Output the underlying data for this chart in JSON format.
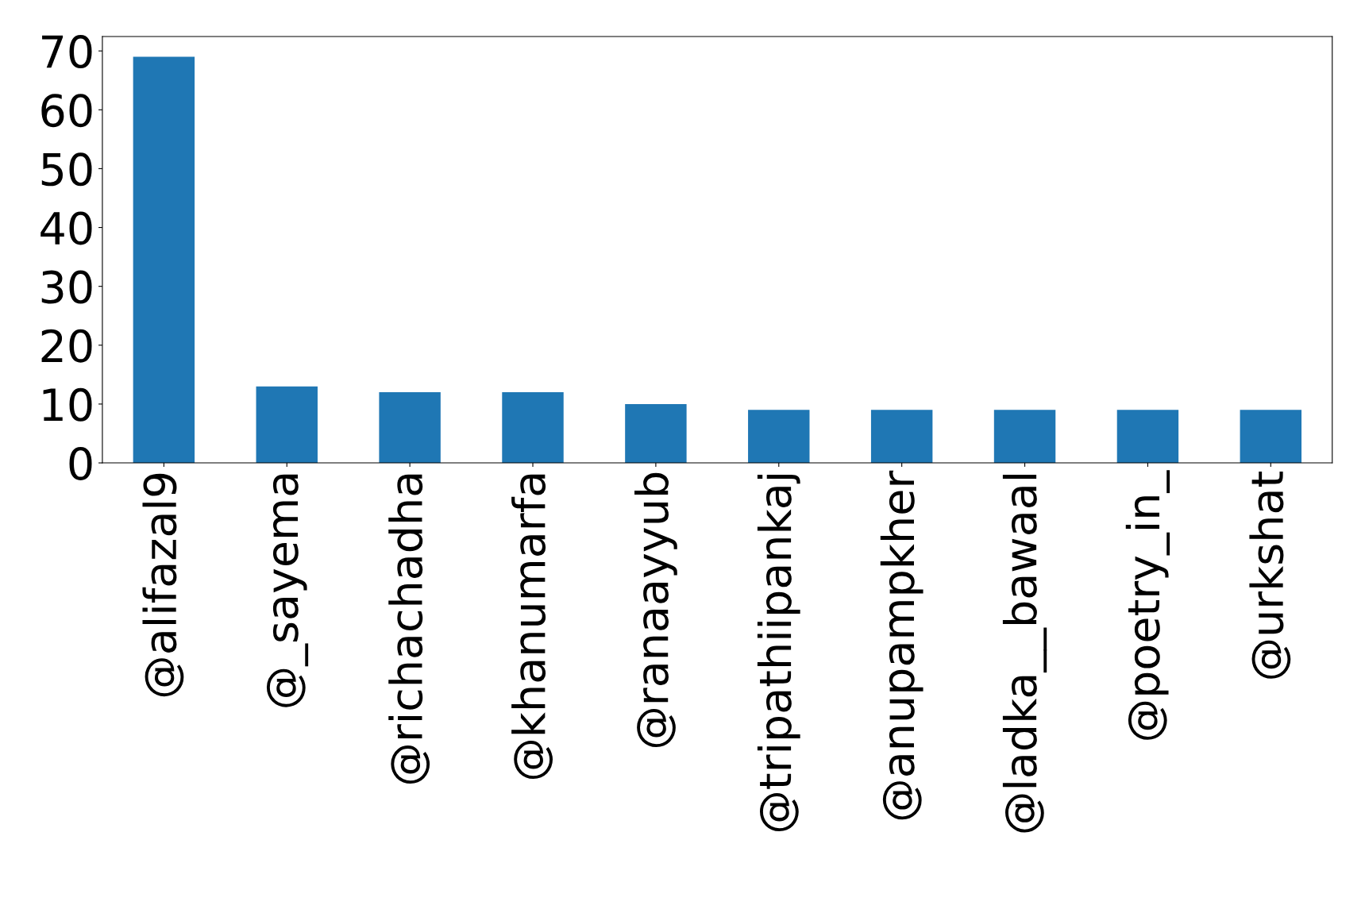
{
  "chart_data": {
    "type": "bar",
    "categories": [
      "@alifazal9",
      "@_sayema",
      "@richachadha",
      "@khanumarfa",
      "@ranaayyub",
      "@tripathiipankaj",
      "@anupampkher",
      "@ladka__bawaal",
      "@poetry_in_",
      "@urkshat"
    ],
    "values": [
      69,
      13,
      12,
      12,
      10,
      9,
      9,
      9,
      9,
      9
    ],
    "color": "#1f77b4",
    "ylim": [
      0,
      72.45
    ],
    "yticks": [
      0,
      10,
      20,
      30,
      40,
      50,
      60,
      70
    ],
    "grid": false,
    "legend": false
  }
}
